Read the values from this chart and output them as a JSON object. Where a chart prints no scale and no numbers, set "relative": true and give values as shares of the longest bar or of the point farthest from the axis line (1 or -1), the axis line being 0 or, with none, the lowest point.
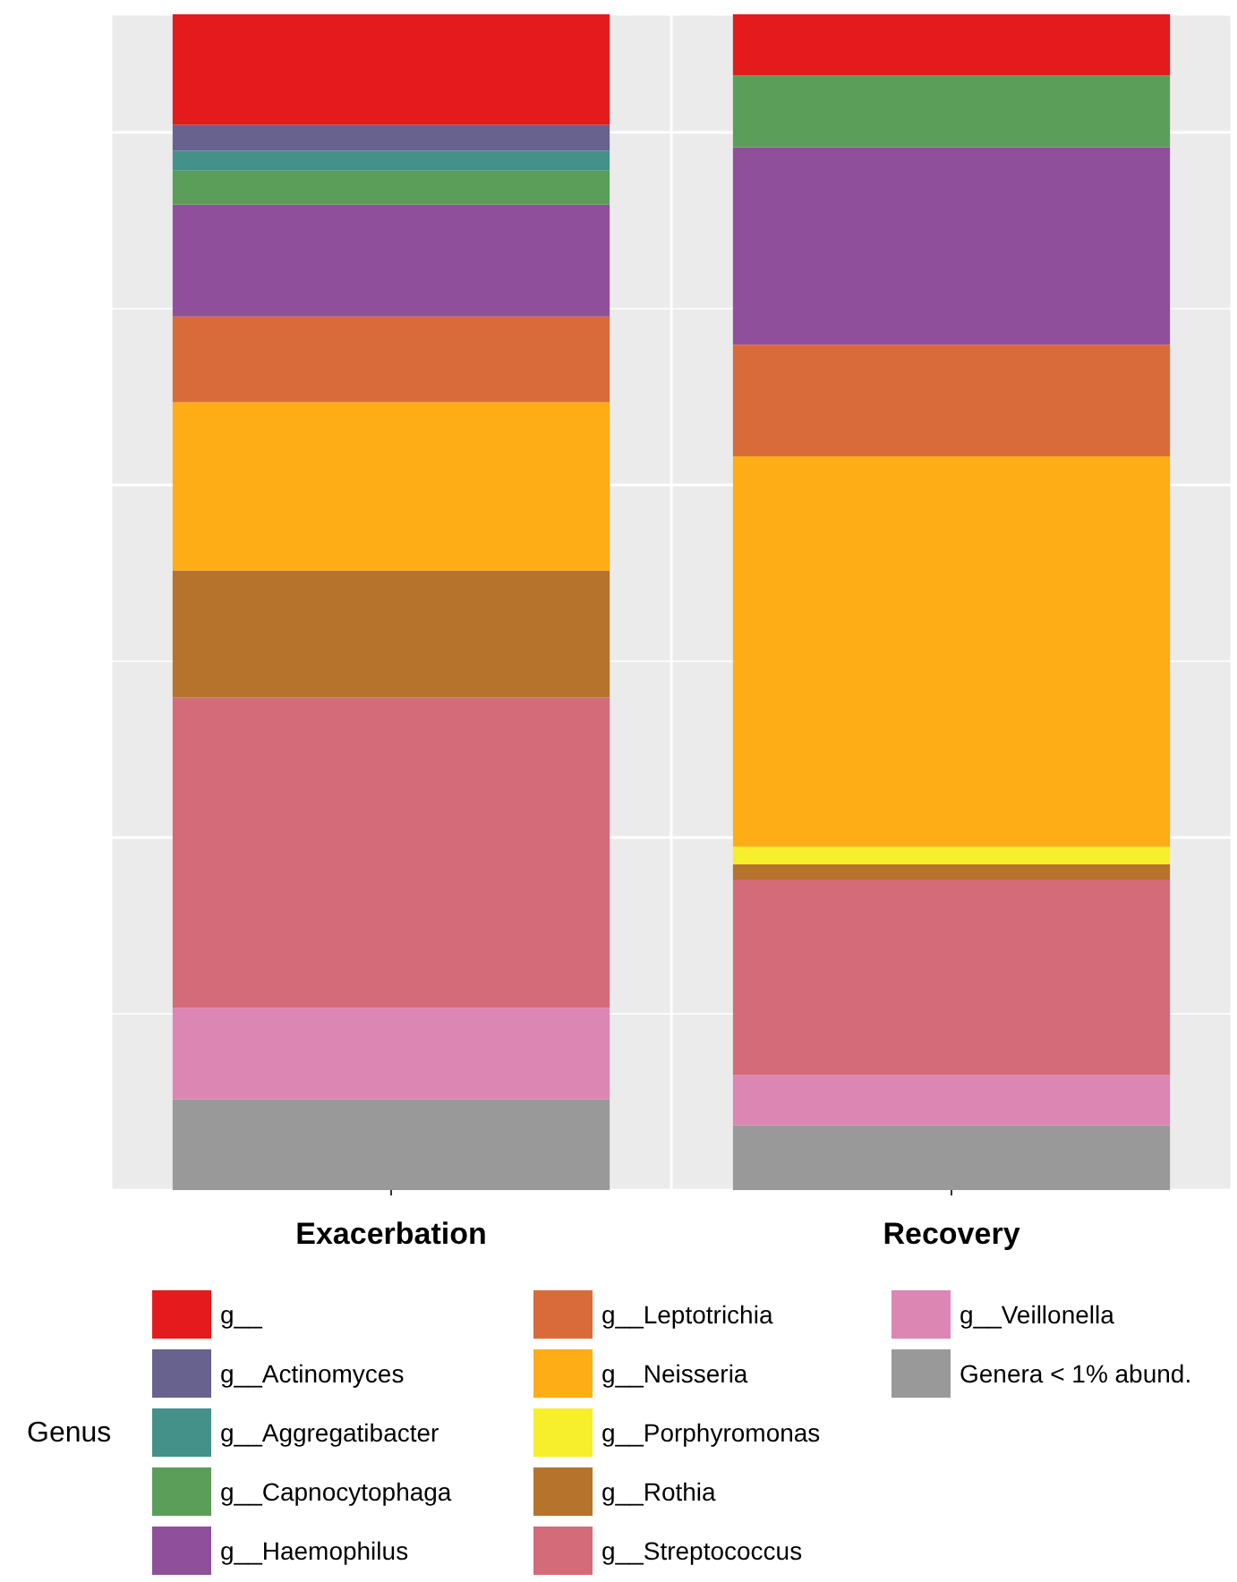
{
  "chart_data": {
    "type": "bar",
    "stacked": true,
    "relative": true,
    "grid": true,
    "legend": "bottom",
    "legend_title": "Genus",
    "categories": [
      "Exacerbation",
      "Recovery"
    ],
    "series": [
      {
        "name": "Genera < 1% abund.",
        "color": "#999999",
        "values": [
          0.077,
          0.055
        ]
      },
      {
        "name": "g__Veillonella",
        "color": "#dc86b3",
        "values": [
          0.078,
          0.043
        ]
      },
      {
        "name": "g__Streptococcus",
        "color": "#d36b79",
        "values": [
          0.264,
          0.166
        ]
      },
      {
        "name": "g__Rothia",
        "color": "#b5732c",
        "values": [
          0.108,
          0.013
        ]
      },
      {
        "name": "g__Porphyromonas",
        "color": "#f7ee2c",
        "values": [
          0,
          0.015
        ]
      },
      {
        "name": "g__Neisseria",
        "color": "#fead16",
        "values": [
          0.143,
          0.332
        ]
      },
      {
        "name": "g__Leptotrichia",
        "color": "#d96b3a",
        "values": [
          0.073,
          0.095
        ]
      },
      {
        "name": "g__Haemophilus",
        "color": "#904f9a",
        "values": [
          0.095,
          0.168
        ]
      },
      {
        "name": "g__Capnocytophaga",
        "color": "#5a9e5a",
        "values": [
          0.029,
          0.061
        ]
      },
      {
        "name": "g__Aggregatibacter",
        "color": "#44918a",
        "values": [
          0.017,
          0
        ]
      },
      {
        "name": "g__Actinomyces",
        "color": "#68628f",
        "values": [
          0.022,
          0
        ]
      },
      {
        "name": "g__",
        "color": "#e41a1c",
        "values": [
          0.094,
          0.052
        ]
      }
    ]
  }
}
